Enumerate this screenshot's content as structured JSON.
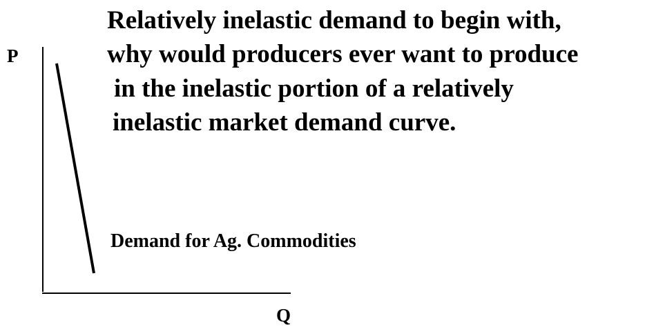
{
  "title_lines": [
    "Relatively inelastic demand to begin with,",
    "why would producers ever want to produce",
    "in the inelastic portion of a relatively",
    "inelastic market demand curve."
  ],
  "diagram": {
    "y_axis_label": "P",
    "x_axis_label": "Q",
    "curve_label": "Demand for Ag. Commodities"
  }
}
